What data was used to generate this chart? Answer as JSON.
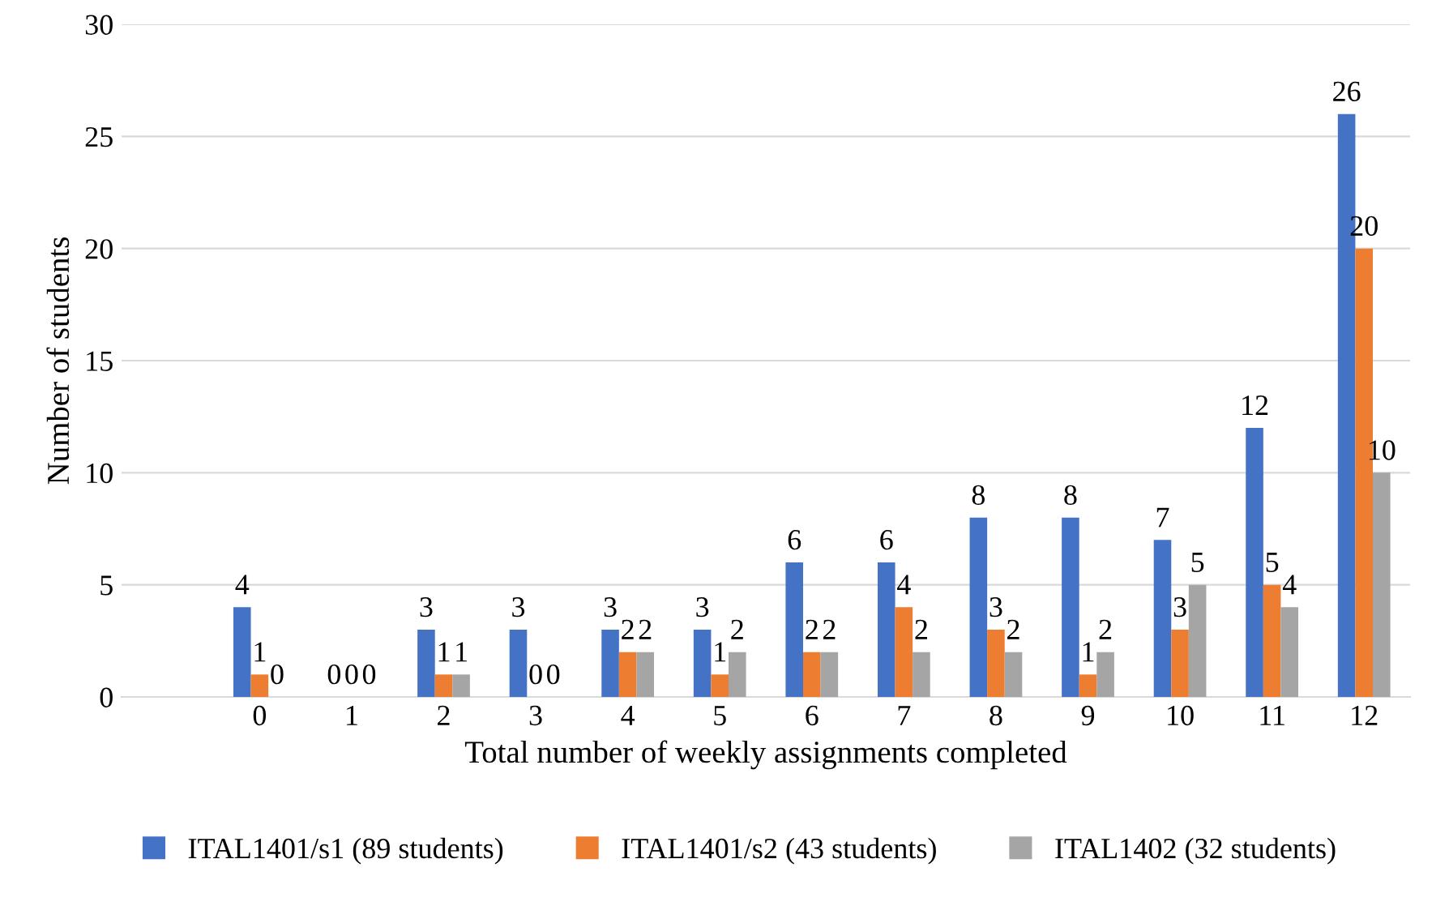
{
  "chart_data": {
    "type": "bar",
    "xlabel": "Total number of weekly assignments completed",
    "ylabel": "Number of students",
    "categories": [
      null,
      "0",
      "1",
      "2",
      "3",
      "4",
      "5",
      "6",
      "7",
      "8",
      "9",
      "10",
      "11",
      "12"
    ],
    "series": [
      {
        "name": "ITAL1401/s1 (89 students)",
        "color": "#4472c4",
        "values": [
          null,
          4,
          0,
          3,
          3,
          3,
          3,
          6,
          6,
          8,
          8,
          7,
          12,
          26
        ]
      },
      {
        "name": "ITAL1401/s2 (43 students)",
        "color": "#ed7d31",
        "values": [
          null,
          1,
          0,
          1,
          0,
          2,
          1,
          2,
          4,
          3,
          1,
          3,
          5,
          20
        ]
      },
      {
        "name": "ITAL1402 (32 students)",
        "color": "#a5a5a5",
        "values": [
          null,
          0,
          0,
          1,
          0,
          2,
          2,
          2,
          2,
          2,
          2,
          5,
          4,
          10
        ]
      }
    ],
    "ylim": [
      0,
      30
    ],
    "yticks": [
      0,
      5,
      10,
      15,
      20,
      25,
      30
    ],
    "grid": "y",
    "legend": "bottom",
    "data_labels": true
  }
}
